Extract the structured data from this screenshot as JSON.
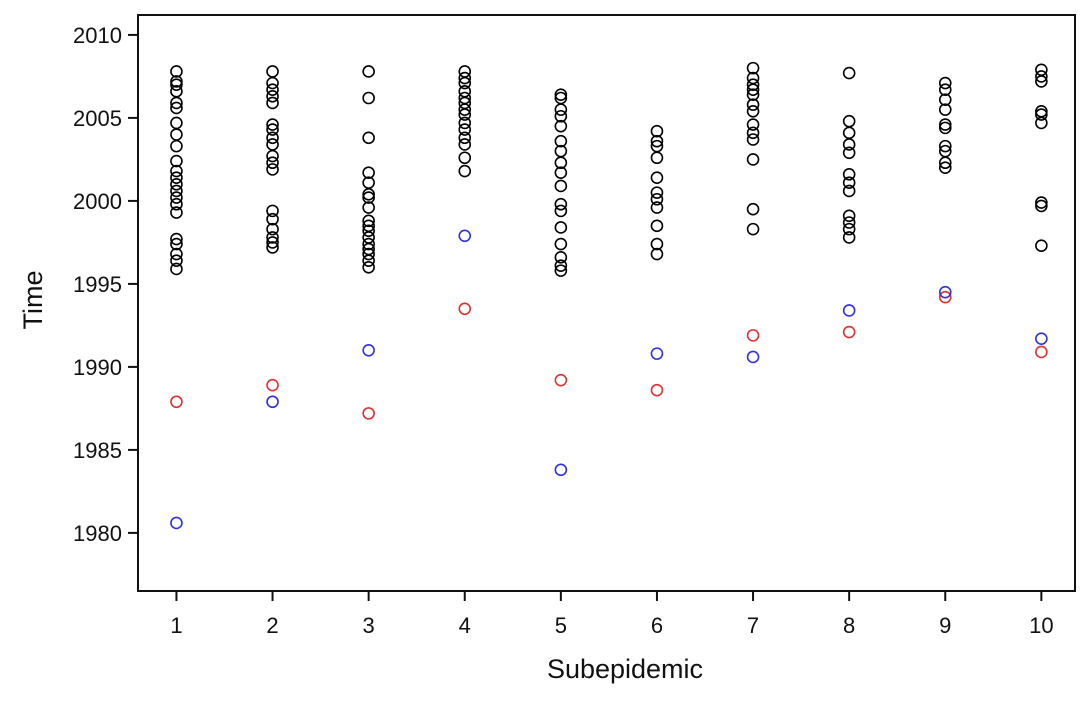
{
  "chart_data": {
    "type": "scatter",
    "title": "",
    "xlabel": "Subepidemic",
    "ylabel": "Time",
    "xlim": [
      0.6,
      10.35
    ],
    "ylim": [
      1976.5,
      2011.2
    ],
    "x_ticks": [
      1,
      2,
      3,
      4,
      5,
      6,
      7,
      8,
      9,
      10
    ],
    "y_ticks": [
      1980,
      1985,
      1990,
      1995,
      2000,
      2005,
      2010
    ],
    "grid": false,
    "legend": "none",
    "marker": "open-circle",
    "series": [
      {
        "color": "#000000",
        "points": [
          {
            "x": 1,
            "ys": [
              1995.9,
              1996.4,
              1996.8,
              1997.4,
              1997.7,
              1999.3,
              1999.8,
              2000.2,
              2000.6,
              2001.0,
              2001.4,
              2001.8,
              2002.4,
              2003.3,
              2004.0,
              2004.7,
              2005.6,
              2005.9,
              2006.6,
              2007.0,
              2007.2,
              2007.8
            ]
          },
          {
            "x": 2,
            "ys": [
              1997.2,
              1997.5,
              1997.8,
              1998.3,
              1998.9,
              1999.4,
              2001.9,
              2002.3,
              2002.7,
              2003.4,
              2003.8,
              2004.3,
              2004.6,
              2005.9,
              2006.3,
              2006.7,
              2007.1,
              2007.8
            ]
          },
          {
            "x": 3,
            "ys": [
              1996.0,
              1996.4,
              1996.8,
              1997.1,
              1997.4,
              1997.8,
              1998.2,
              1998.5,
              1998.8,
              1999.6,
              2000.2,
              2000.4,
              2001.1,
              2001.7,
              2003.8,
              2006.2,
              2007.8
            ]
          },
          {
            "x": 4,
            "ys": [
              2001.8,
              2002.6,
              2003.4,
              2003.8,
              2004.3,
              2004.7,
              2005.2,
              2005.5,
              2005.9,
              2006.2,
              2006.6,
              2007.1,
              2007.4,
              2007.8
            ]
          },
          {
            "x": 5,
            "ys": [
              1995.8,
              1996.1,
              1996.6,
              1997.4,
              1998.4,
              1999.4,
              1999.8,
              2000.9,
              2001.7,
              2002.3,
              2003.0,
              2003.6,
              2004.5,
              2005.1,
              2005.5,
              2006.2,
              2006.4
            ]
          },
          {
            "x": 6,
            "ys": [
              1996.8,
              1997.4,
              1998.5,
              1999.6,
              2000.1,
              2000.5,
              2001.4,
              2002.6,
              2003.3,
              2003.6,
              2004.2
            ]
          },
          {
            "x": 7,
            "ys": [
              1998.3,
              1999.5,
              2002.5,
              2003.7,
              2004.1,
              2004.6,
              2005.4,
              2005.8,
              2006.4,
              2006.7,
              2007.0,
              2007.4,
              2008.0
            ]
          },
          {
            "x": 8,
            "ys": [
              1997.8,
              1998.3,
              1998.7,
              1999.1,
              2000.6,
              2001.1,
              2001.6,
              2002.9,
              2003.4,
              2004.1,
              2004.8,
              2007.7
            ]
          },
          {
            "x": 9,
            "ys": [
              2002.0,
              2002.3,
              2003.0,
              2003.3,
              2004.4,
              2004.6,
              2005.5,
              2006.1,
              2006.7,
              2007.1
            ]
          },
          {
            "x": 10,
            "ys": [
              1997.3,
              1999.7,
              1999.9,
              2004.7,
              2005.2,
              2005.4,
              2007.2,
              2007.5,
              2007.9
            ]
          }
        ]
      },
      {
        "color": "#e03030",
        "points": [
          {
            "x": 1,
            "ys": [
              1987.9
            ]
          },
          {
            "x": 2,
            "ys": [
              1988.9
            ]
          },
          {
            "x": 3,
            "ys": [
              1987.2
            ]
          },
          {
            "x": 4,
            "ys": [
              1993.5
            ]
          },
          {
            "x": 5,
            "ys": [
              1989.2
            ]
          },
          {
            "x": 6,
            "ys": [
              1988.6
            ]
          },
          {
            "x": 7,
            "ys": [
              1991.9
            ]
          },
          {
            "x": 8,
            "ys": [
              1992.1
            ]
          },
          {
            "x": 9,
            "ys": [
              1994.2
            ]
          },
          {
            "x": 10,
            "ys": [
              1990.9
            ]
          }
        ]
      },
      {
        "color": "#3030e0",
        "points": [
          {
            "x": 1,
            "ys": [
              1980.6
            ]
          },
          {
            "x": 2,
            "ys": [
              1987.9
            ]
          },
          {
            "x": 3,
            "ys": [
              1991.0
            ]
          },
          {
            "x": 4,
            "ys": [
              1997.9
            ]
          },
          {
            "x": 5,
            "ys": [
              1983.8
            ]
          },
          {
            "x": 6,
            "ys": [
              1990.8
            ]
          },
          {
            "x": 7,
            "ys": [
              1990.6
            ]
          },
          {
            "x": 8,
            "ys": [
              1993.4
            ]
          },
          {
            "x": 9,
            "ys": [
              1994.5
            ]
          },
          {
            "x": 10,
            "ys": [
              1991.7
            ]
          }
        ]
      }
    ]
  }
}
